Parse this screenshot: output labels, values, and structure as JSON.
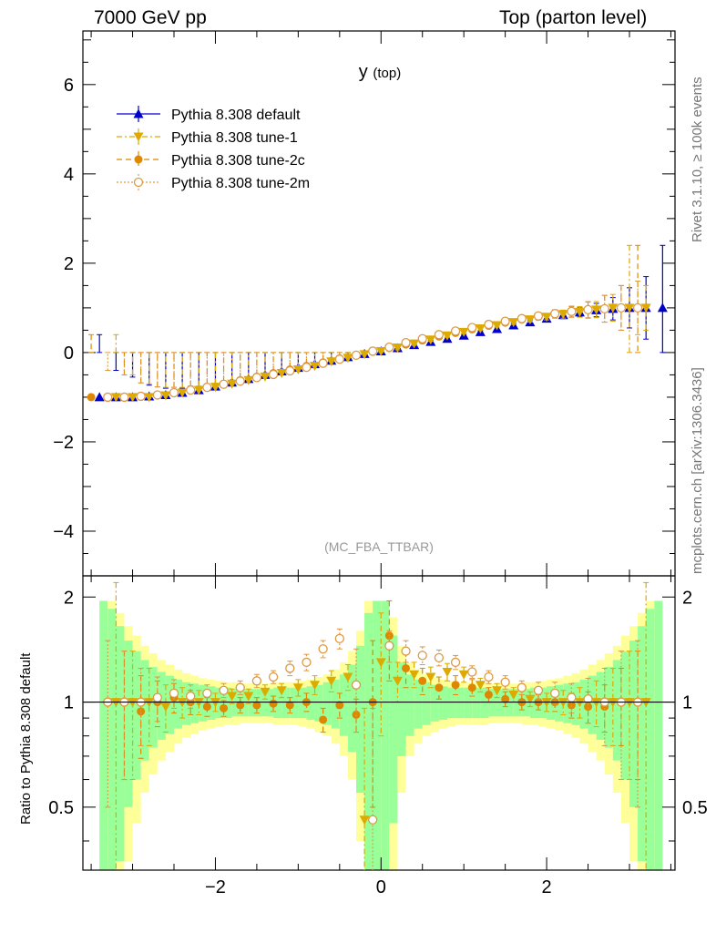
{
  "header": {
    "left": "7000 GeV pp",
    "right": "Top (parton level)"
  },
  "side_labels": {
    "rivet": "Rivet 3.1.10, ≥ 100k events",
    "mcplots": "mcplots.cern.ch [arXiv:1306.3436]"
  },
  "colors": {
    "default": "#0000cc",
    "tune1": "#ddaa00",
    "tune2c": "#dd8800",
    "tune2m": "#dd9944",
    "band_inner": "#99ff99",
    "band_outer": "#ffff99"
  },
  "chart_data": [
    {
      "type": "line",
      "title": "y (top)",
      "watermark": "(MC_FBA_TTBAR)",
      "xlabel": "",
      "ylabel": "",
      "xlim": [
        -3.6,
        3.55
      ],
      "ylim": [
        -5,
        7.2
      ],
      "yticks": [
        -4,
        -2,
        0,
        2,
        4,
        6
      ],
      "xticks": [
        -2,
        0,
        2
      ],
      "legend": "top-left",
      "grid": false,
      "series": [
        {
          "name": "Pythia 8.308 default",
          "marker": "triangle-up",
          "x": [
            -3.4,
            -3.2,
            -3.0,
            -2.8,
            -2.6,
            -2.4,
            -2.2,
            -2.0,
            -1.8,
            -1.6,
            -1.4,
            -1.2,
            -1.0,
            -0.8,
            -0.6,
            -0.4,
            -0.2,
            0.0,
            0.2,
            0.4,
            0.6,
            0.8,
            1.0,
            1.2,
            1.4,
            1.6,
            1.8,
            2.0,
            2.2,
            2.4,
            2.6,
            2.8,
            3.0,
            3.2,
            3.4
          ],
          "y": [
            -1.0,
            -1.0,
            -1.0,
            -0.98,
            -0.95,
            -0.9,
            -0.84,
            -0.76,
            -0.67,
            -0.59,
            -0.5,
            -0.42,
            -0.34,
            -0.26,
            -0.18,
            -0.1,
            -0.03,
            0.03,
            0.1,
            0.17,
            0.24,
            0.31,
            0.38,
            0.46,
            0.53,
            0.61,
            0.68,
            0.76,
            0.84,
            0.9,
            0.95,
            0.98,
            1.0,
            1.0,
            1.0
          ],
          "err": [
            1.4,
            0.6,
            0.45,
            0.25,
            0.15,
            0.1,
            0.08,
            0.06,
            0.05,
            0.04,
            0.04,
            0.03,
            0.03,
            0.03,
            0.03,
            0.03,
            0.03,
            0.03,
            0.03,
            0.03,
            0.03,
            0.03,
            0.03,
            0.03,
            0.04,
            0.04,
            0.05,
            0.06,
            0.08,
            0.1,
            0.15,
            0.25,
            0.45,
            0.7,
            1.4
          ]
        },
        {
          "name": "Pythia 8.308 tune-1",
          "marker": "triangle-down",
          "x": [
            -3.2,
            -3.0,
            -2.8,
            -2.6,
            -2.4,
            -2.2,
            -2.0,
            -1.8,
            -1.6,
            -1.4,
            -1.2,
            -1.0,
            -0.8,
            -0.6,
            -0.4,
            -0.2,
            0.0,
            0.2,
            0.4,
            0.6,
            0.8,
            1.0,
            1.2,
            1.4,
            1.6,
            1.8,
            2.0,
            2.2,
            2.4,
            2.6,
            2.8,
            3.0,
            3.2
          ],
          "y": [
            -1.0,
            -1.0,
            -1.0,
            -0.96,
            -0.9,
            -0.84,
            -0.77,
            -0.7,
            -0.62,
            -0.54,
            -0.46,
            -0.38,
            -0.3,
            -0.2,
            -0.12,
            -0.04,
            0.03,
            0.11,
            0.2,
            0.29,
            0.38,
            0.46,
            0.54,
            0.61,
            0.68,
            0.74,
            0.8,
            0.86,
            0.91,
            0.96,
            1.0,
            1.0,
            1.0
          ],
          "err": [
            1.4,
            0.5,
            0.3,
            0.18,
            0.12,
            0.09,
            0.07,
            0.06,
            0.05,
            0.04,
            0.04,
            0.04,
            0.04,
            0.04,
            0.04,
            0.05,
            0.05,
            0.05,
            0.04,
            0.04,
            0.04,
            0.04,
            0.04,
            0.04,
            0.05,
            0.06,
            0.07,
            0.09,
            0.12,
            0.18,
            0.3,
            1.4,
            0.5
          ]
        },
        {
          "name": "Pythia 8.308 tune-2c",
          "marker": "circle",
          "x": [
            -3.5,
            -3.1,
            -2.9,
            -2.7,
            -2.5,
            -2.3,
            -2.1,
            -1.9,
            -1.7,
            -1.5,
            -1.3,
            -1.1,
            -0.9,
            -0.7,
            -0.5,
            -0.3,
            -0.1,
            0.1,
            0.3,
            0.5,
            0.7,
            0.9,
            1.1,
            1.3,
            1.5,
            1.7,
            1.9,
            2.1,
            2.3,
            2.5,
            2.7,
            2.9,
            3.1
          ],
          "y": [
            -1.0,
            -1.0,
            -0.98,
            -0.95,
            -0.9,
            -0.84,
            -0.77,
            -0.7,
            -0.62,
            -0.54,
            -0.46,
            -0.38,
            -0.3,
            -0.22,
            -0.13,
            -0.05,
            0.02,
            0.1,
            0.18,
            0.27,
            0.36,
            0.44,
            0.52,
            0.6,
            0.67,
            0.74,
            0.8,
            0.86,
            0.91,
            0.95,
            0.98,
            1.0,
            1.0
          ],
          "err": [
            1.4,
            0.5,
            0.3,
            0.18,
            0.12,
            0.09,
            0.07,
            0.06,
            0.05,
            0.04,
            0.04,
            0.04,
            0.04,
            0.04,
            0.04,
            0.05,
            0.05,
            0.05,
            0.04,
            0.04,
            0.04,
            0.04,
            0.04,
            0.04,
            0.05,
            0.06,
            0.07,
            0.09,
            0.12,
            0.18,
            0.3,
            0.5,
            1.4
          ]
        },
        {
          "name": "Pythia 8.308 tune-2m",
          "marker": "open-circle",
          "x": [
            -3.3,
            -3.1,
            -2.9,
            -2.7,
            -2.5,
            -2.3,
            -2.1,
            -1.9,
            -1.7,
            -1.5,
            -1.3,
            -1.1,
            -0.9,
            -0.7,
            -0.5,
            -0.3,
            -0.1,
            0.1,
            0.3,
            0.5,
            0.7,
            0.9,
            1.1,
            1.3,
            1.5,
            1.7,
            1.9,
            2.1,
            2.3,
            2.5,
            2.7,
            2.9,
            3.1
          ],
          "y": [
            -1.0,
            -1.0,
            -0.98,
            -0.95,
            -0.9,
            -0.84,
            -0.78,
            -0.71,
            -0.64,
            -0.56,
            -0.49,
            -0.41,
            -0.33,
            -0.24,
            -0.15,
            -0.06,
            0.03,
            0.12,
            0.22,
            0.31,
            0.4,
            0.48,
            0.56,
            0.63,
            0.7,
            0.76,
            0.82,
            0.87,
            0.92,
            0.96,
            0.98,
            1.0,
            1.0
          ],
          "err": [
            0.6,
            0.5,
            0.3,
            0.18,
            0.12,
            0.09,
            0.07,
            0.06,
            0.05,
            0.04,
            0.04,
            0.04,
            0.04,
            0.04,
            0.04,
            0.05,
            0.05,
            0.05,
            0.04,
            0.04,
            0.04,
            0.04,
            0.04,
            0.04,
            0.05,
            0.06,
            0.07,
            0.09,
            0.12,
            0.18,
            0.3,
            0.5,
            0.6
          ]
        }
      ]
    },
    {
      "type": "line",
      "title": "",
      "xlabel": "",
      "ylabel": "Ratio to Pythia 8.308 default",
      "xlim": [
        -3.6,
        3.55
      ],
      "ylim": [
        0.33,
        2.3
      ],
      "log_y": true,
      "yticks": [
        0.5,
        1,
        2
      ],
      "xticks": [
        -2,
        0,
        2
      ],
      "reference_line": 1,
      "bands": {
        "x_edges": [
          -3.4,
          -3.3,
          -3.2,
          -3.1,
          -3.0,
          -2.9,
          -2.8,
          -2.7,
          -2.6,
          -2.5,
          -2.4,
          -2.3,
          -2.2,
          -2.1,
          -2.0,
          -1.9,
          -1.8,
          -1.7,
          -1.6,
          -1.5,
          -1.4,
          -1.3,
          -1.2,
          -1.1,
          -1.0,
          -0.9,
          -0.8,
          -0.7,
          -0.6,
          -0.5,
          -0.4,
          -0.3,
          -0.2,
          -0.1,
          0.0,
          0.1,
          0.2,
          0.3,
          0.4,
          0.5,
          0.6,
          0.7,
          0.8,
          0.9,
          1.0,
          1.1,
          1.2,
          1.3,
          1.4,
          1.5,
          1.6,
          1.7,
          1.8,
          1.9,
          2.0,
          2.1,
          2.2,
          2.3,
          2.4,
          2.5,
          2.6,
          2.7,
          2.8,
          2.9,
          3.0,
          3.1,
          3.2,
          3.3,
          3.4
        ],
        "inner": [
          0.95,
          0.85,
          0.65,
          0.5,
          0.4,
          0.32,
          0.26,
          0.22,
          0.19,
          0.16,
          0.14,
          0.13,
          0.12,
          0.11,
          0.1,
          0.1,
          0.09,
          0.09,
          0.09,
          0.09,
          0.09,
          0.1,
          0.1,
          0.1,
          0.1,
          0.11,
          0.12,
          0.14,
          0.16,
          0.2,
          0.28,
          0.45,
          0.8,
          0.95,
          0.95,
          0.55,
          0.3,
          0.2,
          0.16,
          0.14,
          0.12,
          0.11,
          0.1,
          0.1,
          0.1,
          0.1,
          0.1,
          0.09,
          0.09,
          0.09,
          0.09,
          0.09,
          0.1,
          0.1,
          0.11,
          0.12,
          0.13,
          0.14,
          0.16,
          0.19,
          0.22,
          0.26,
          0.32,
          0.4,
          0.5,
          0.65,
          0.85,
          0.95
        ],
        "outer": [
          0.95,
          0.95,
          0.8,
          0.65,
          0.55,
          0.45,
          0.38,
          0.32,
          0.28,
          0.24,
          0.21,
          0.19,
          0.17,
          0.16,
          0.15,
          0.14,
          0.14,
          0.13,
          0.13,
          0.13,
          0.13,
          0.14,
          0.14,
          0.14,
          0.15,
          0.16,
          0.18,
          0.2,
          0.24,
          0.3,
          0.4,
          0.6,
          0.95,
          0.95,
          0.95,
          0.75,
          0.45,
          0.3,
          0.24,
          0.2,
          0.18,
          0.16,
          0.15,
          0.14,
          0.14,
          0.14,
          0.14,
          0.13,
          0.13,
          0.13,
          0.13,
          0.14,
          0.14,
          0.15,
          0.16,
          0.17,
          0.19,
          0.21,
          0.24,
          0.28,
          0.32,
          0.38,
          0.45,
          0.55,
          0.65,
          0.8,
          0.95,
          0.95
        ]
      },
      "series": [
        {
          "name": "Pythia 8.308 tune-1",
          "marker": "triangle-down",
          "x": [
            -3.2,
            -3.0,
            -2.8,
            -2.6,
            -2.4,
            -2.2,
            -2.0,
            -1.8,
            -1.6,
            -1.4,
            -1.2,
            -1.0,
            -0.8,
            -0.6,
            -0.4,
            -0.2,
            0.0,
            0.2,
            0.4,
            0.6,
            0.8,
            1.0,
            1.2,
            1.4,
            1.6,
            1.8,
            2.0,
            2.2,
            2.4,
            2.6,
            2.8,
            3.0,
            3.2
          ],
          "y": [
            1.0,
            1.0,
            1.0,
            0.97,
            1.0,
            1.0,
            1.0,
            1.04,
            1.04,
            1.07,
            1.08,
            1.1,
            1.12,
            1.15,
            1.18,
            0.46,
            1.3,
            1.15,
            1.2,
            1.18,
            1.22,
            1.2,
            1.12,
            1.08,
            1.05,
            1.02,
            1.0,
            1.0,
            1.0,
            1.0,
            1.0,
            1.0,
            1.0
          ],
          "err": [
            1.2,
            0.4,
            0.25,
            0.15,
            0.1,
            0.08,
            0.06,
            0.05,
            0.05,
            0.05,
            0.05,
            0.06,
            0.07,
            0.08,
            0.1,
            0.5,
            0.5,
            0.15,
            0.1,
            0.08,
            0.07,
            0.06,
            0.05,
            0.05,
            0.05,
            0.05,
            0.06,
            0.08,
            0.1,
            0.15,
            0.25,
            0.4,
            1.2
          ]
        },
        {
          "name": "Pythia 8.308 tune-2c",
          "marker": "circle",
          "x": [
            -3.1,
            -2.9,
            -2.7,
            -2.5,
            -2.3,
            -2.1,
            -1.9,
            -1.7,
            -1.5,
            -1.3,
            -1.1,
            -0.9,
            -0.7,
            -0.5,
            -0.3,
            -0.1,
            0.1,
            0.3,
            0.5,
            0.7,
            0.9,
            1.1,
            1.3,
            1.5,
            1.7,
            1.9,
            2.1,
            2.3,
            2.5,
            2.7,
            2.9,
            3.1
          ],
          "y": [
            1.0,
            0.94,
            1.0,
            1.03,
            1.0,
            0.97,
            0.96,
            0.98,
            0.98,
            0.99,
            0.98,
            1.0,
            0.89,
            0.98,
            0.92,
            1.0,
            1.55,
            1.25,
            1.15,
            1.1,
            1.12,
            1.1,
            1.05,
            1.02,
            1.0,
            1.0,
            1.0,
            0.98,
            0.97,
            0.97,
            1.0,
            1.0
          ],
          "err": [
            0.4,
            0.25,
            0.15,
            0.1,
            0.08,
            0.06,
            0.05,
            0.05,
            0.05,
            0.05,
            0.05,
            0.06,
            0.07,
            0.08,
            0.1,
            0.5,
            0.4,
            0.15,
            0.1,
            0.08,
            0.07,
            0.06,
            0.05,
            0.05,
            0.05,
            0.05,
            0.06,
            0.08,
            0.1,
            0.15,
            0.25,
            0.4
          ]
        },
        {
          "name": "Pythia 8.308 tune-2m",
          "marker": "open-circle",
          "x": [
            -3.3,
            -3.1,
            -2.9,
            -2.7,
            -2.5,
            -2.3,
            -2.1,
            -1.9,
            -1.7,
            -1.5,
            -1.3,
            -1.1,
            -0.9,
            -0.7,
            -0.5,
            -0.3,
            -0.1,
            0.1,
            0.3,
            0.5,
            0.7,
            0.9,
            1.1,
            1.3,
            1.5,
            1.7,
            1.9,
            2.1,
            2.3,
            2.5,
            2.7,
            2.9,
            3.1
          ],
          "y": [
            1.0,
            1.0,
            1.0,
            1.03,
            1.06,
            1.04,
            1.06,
            1.08,
            1.1,
            1.15,
            1.18,
            1.25,
            1.3,
            1.42,
            1.52,
            1.12,
            0.46,
            1.45,
            1.4,
            1.36,
            1.34,
            1.3,
            1.22,
            1.18,
            1.14,
            1.1,
            1.08,
            1.06,
            1.03,
            1.02,
            1.0,
            1.0,
            1.0
          ],
          "err": [
            0.5,
            0.4,
            0.25,
            0.15,
            0.1,
            0.08,
            0.06,
            0.05,
            0.05,
            0.05,
            0.05,
            0.06,
            0.07,
            0.08,
            0.1,
            0.3,
            0.5,
            0.15,
            0.1,
            0.08,
            0.07,
            0.06,
            0.05,
            0.05,
            0.05,
            0.05,
            0.06,
            0.08,
            0.1,
            0.15,
            0.25,
            0.4,
            0.5
          ]
        }
      ]
    }
  ]
}
